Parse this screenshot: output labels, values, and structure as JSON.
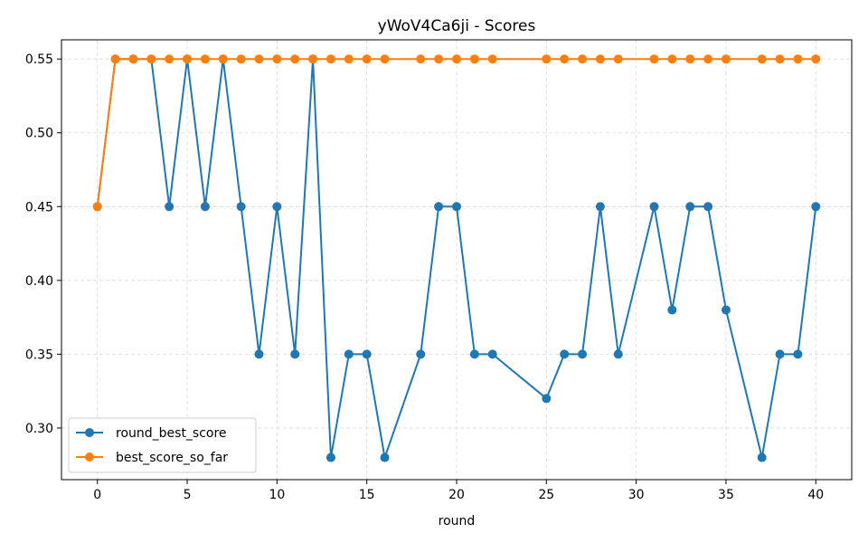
{
  "chart_data": {
    "type": "line",
    "title": "yWoV4Ca6ji - Scores",
    "xlabel": "round",
    "ylabel": "",
    "xlim": [
      -2,
      42
    ],
    "ylim": [
      0.265,
      0.563
    ],
    "xticks": [
      0,
      5,
      10,
      15,
      20,
      25,
      30,
      35,
      40
    ],
    "yticks": [
      0.3,
      0.35,
      0.4,
      0.45,
      0.5,
      0.55
    ],
    "grid": true,
    "legend_position": "lower-left",
    "x": [
      0,
      1,
      2,
      3,
      4,
      5,
      6,
      7,
      8,
      9,
      10,
      11,
      12,
      13,
      14,
      15,
      16,
      18,
      19,
      20,
      21,
      22,
      25,
      26,
      27,
      28,
      29,
      31,
      32,
      33,
      34,
      35,
      37,
      38,
      39,
      40
    ],
    "series": [
      {
        "name": "round_best_score",
        "color": "#1f77b4",
        "values": [
          0.45,
          0.55,
          0.55,
          0.55,
          0.45,
          0.55,
          0.45,
          0.55,
          0.45,
          0.35,
          0.45,
          0.35,
          0.55,
          0.28,
          0.35,
          0.35,
          0.28,
          0.35,
          0.45,
          0.45,
          0.35,
          0.35,
          0.32,
          0.35,
          0.35,
          0.45,
          0.35,
          0.45,
          0.38,
          0.45,
          0.45,
          0.38,
          0.28,
          0.35,
          0.35,
          0.45
        ]
      },
      {
        "name": "best_score_so_far",
        "color": "#ff7f0e",
        "values": [
          0.45,
          0.55,
          0.55,
          0.55,
          0.55,
          0.55,
          0.55,
          0.55,
          0.55,
          0.55,
          0.55,
          0.55,
          0.55,
          0.55,
          0.55,
          0.55,
          0.55,
          0.55,
          0.55,
          0.55,
          0.55,
          0.55,
          0.55,
          0.55,
          0.55,
          0.55,
          0.55,
          0.55,
          0.55,
          0.55,
          0.55,
          0.55,
          0.55,
          0.55,
          0.55,
          0.55
        ]
      }
    ]
  }
}
